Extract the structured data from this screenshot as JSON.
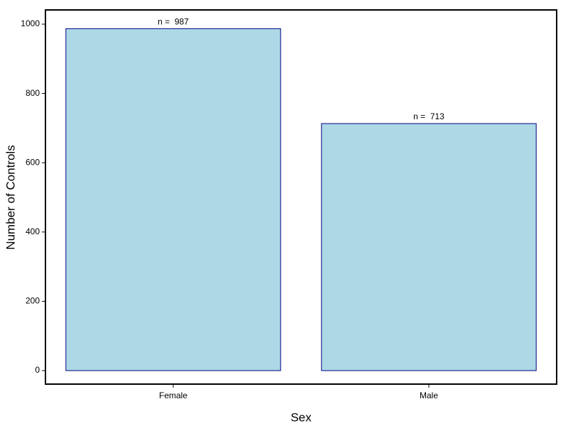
{
  "chart_data": {
    "type": "bar",
    "xlabel": "Sex",
    "ylabel": "Number of Controls",
    "categories": [
      "Female",
      "Male"
    ],
    "values": [
      987,
      713
    ],
    "value_labels": [
      "n =  987",
      "n =  713"
    ],
    "color": "#add8e6",
    "edgecolor": "#000080",
    "ylim": [
      -39,
      1041
    ],
    "yticks": [
      0,
      200,
      400,
      600,
      800,
      1000
    ],
    "grid": false
  }
}
